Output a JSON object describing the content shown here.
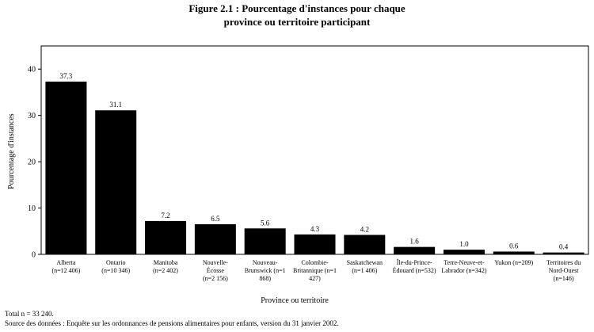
{
  "chart_data": {
    "type": "bar",
    "title_line1": "Figure 2.1 : Pourcentage d'instances pour chaque",
    "title_line2": "province ou territoire participant",
    "xlabel": "Province ou territoire",
    "ylabel": "Pourcentage d'instances",
    "ylim": [
      0,
      45
    ],
    "yticks": [
      0,
      10,
      20,
      30,
      40
    ],
    "bar_color": "#000000",
    "categories": [
      {
        "name": "Alberta",
        "n": "(n=12 406)"
      },
      {
        "name": "Ontario",
        "n": "(n=10 346)"
      },
      {
        "name": "Manitoba",
        "n": "(n=2 402)"
      },
      {
        "name": "Nouvelle-Écosse",
        "n": "(n=2 156)"
      },
      {
        "name": "Nouveau-Brunswick",
        "n": "(n=1 868)"
      },
      {
        "name": "Colombie-Britannique",
        "n": "(n=1 427)"
      },
      {
        "name": "Saskatchewan",
        "n": "(n=1 406)"
      },
      {
        "name": "Île-du-Prince-Édouard",
        "n": "(n=532)"
      },
      {
        "name": "Terre-Neuve-et-Labrador",
        "n": "(n=342)"
      },
      {
        "name": "Yukon",
        "n": "(n=209)"
      },
      {
        "name": "Territoires du Nord-Ouest",
        "n": "(n=146)"
      }
    ],
    "values": [
      37.3,
      31.1,
      7.2,
      6.5,
      5.6,
      4.3,
      4.2,
      1.6,
      1.0,
      0.6,
      0.4
    ],
    "value_labels": [
      "37.3",
      "31.1",
      "7.2",
      "6.5",
      "5.6",
      "4.3",
      "4.2",
      "1.6",
      "1.0",
      "0.6",
      "0.4"
    ],
    "x_tick_labels": [
      [
        "Alberta",
        "(n=12 406)"
      ],
      [
        "Ontario",
        "(n=10 346)"
      ],
      [
        "Manitoba",
        "(n=2 402)"
      ],
      [
        "Nouvelle-",
        "Écosse",
        "(n=2 156)"
      ],
      [
        "Nouveau-",
        "Brunswick (n=1",
        "868)"
      ],
      [
        "Colombie-",
        "Britannique (n=1",
        "427)"
      ],
      [
        "Saskatchewan",
        "(n=1 406)"
      ],
      [
        "Île-du-Prince-",
        "Édouard (n=532)"
      ],
      [
        "Terre-Neuve-et-",
        "Labrador (n=342)"
      ],
      [
        "Yukon (n=209)"
      ],
      [
        "Territoires du",
        "Nord-Ouest",
        "(n=146)"
      ]
    ],
    "grid": false,
    "legend": "none"
  },
  "footnotes": {
    "total": "Total n = 33 240.",
    "source": "Source des données : Enquête sur les ordonnances de pensions alimentaires pour enfants, version du 31 janvier 2002."
  }
}
